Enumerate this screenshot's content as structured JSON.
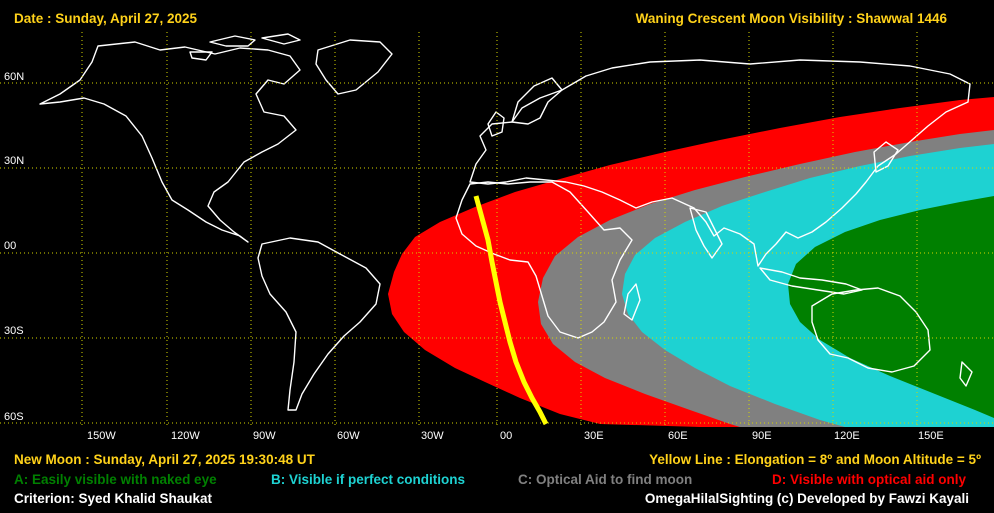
{
  "header": {
    "date": "Date : Sunday, April 27, 2025",
    "title": "Waning Crescent Moon Visibility : Shawwal 1446"
  },
  "map": {
    "lat_labels": [
      "60N",
      "30N",
      "00",
      "30S",
      "60S"
    ],
    "lon_labels": [
      "150W",
      "120W",
      "90W",
      "60W",
      "30W",
      "00",
      "30E",
      "60E",
      "90E",
      "120E",
      "150E"
    ]
  },
  "footer": {
    "new_moon": "New Moon : Sunday, April 27, 2025  19:30:48  UT",
    "yellow_line": "Yellow Line : Elongation = 8º  and Moon Altitude = 5º",
    "legend_a": "A: Easily visible with naked eye",
    "legend_b": "B: Visible if perfect conditions",
    "legend_c": "C: Optical Aid to find moon",
    "legend_d": "D: Visible with optical aid only",
    "criterion": "Criterion: Syed Khalid Shaukat",
    "credit": "OmegaHilalSighting  (c)  Developed by Fawzi Kayali"
  },
  "colors": {
    "background": "#000000",
    "title_text": "#ffd21a",
    "zone_a": "#008000",
    "zone_b": "#1ed2d2",
    "zone_c": "#808080",
    "zone_d": "#ff0000",
    "yellow_line": "#ffff00",
    "grid": "#d6d600",
    "coast": "#ffffff"
  }
}
